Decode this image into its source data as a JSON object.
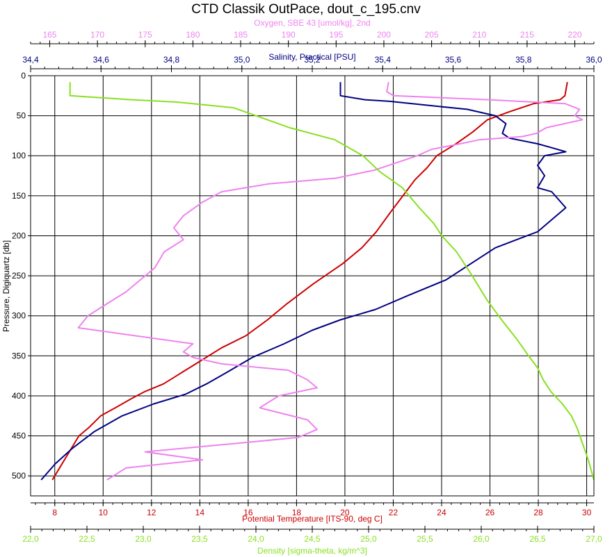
{
  "chart_data": {
    "type": "line",
    "title": "CTD Classik OutPace, dout_c_195.cnv",
    "ylabel": "Pressure, Digiquartz [db]",
    "ylim": [
      0,
      525
    ],
    "y_inverted": true,
    "yticks": [
      0,
      50,
      100,
      150,
      200,
      250,
      300,
      350,
      400,
      450,
      500
    ],
    "grid": true,
    "axes": [
      {
        "id": "oxygen",
        "position": "top-outer",
        "label": "Oxygen, SBE 43 [umol/kg], 2nd",
        "color": "#ee82ee",
        "range": [
          163,
          222
        ],
        "ticks": [
          165,
          170,
          175,
          180,
          185,
          190,
          195,
          200,
          205,
          210,
          215,
          220
        ],
        "ticklabels": [
          "165",
          "170",
          "175",
          "180",
          "185",
          "190",
          "195",
          "200",
          "205",
          "210",
          "215",
          "220"
        ]
      },
      {
        "id": "salinity",
        "position": "top-inner",
        "label": "Salinity, Practical [PSU]",
        "color": "#000080",
        "range": [
          34.4,
          36.0
        ],
        "ticks": [
          34.4,
          34.6,
          34.8,
          35.0,
          35.2,
          35.4,
          35.6,
          35.8,
          36.0
        ],
        "ticklabels": [
          "34,4",
          "34,6",
          "34,8",
          "35,0",
          "35,2",
          "35,4",
          "35,6",
          "35,8",
          "36,0"
        ]
      },
      {
        "id": "temperature",
        "position": "bottom-inner",
        "label": "Potential Temperature [ITS-90, deg C]",
        "color": "#cc0000",
        "range": [
          7,
          30.3
        ],
        "ticks": [
          8,
          10,
          12,
          14,
          16,
          18,
          20,
          22,
          24,
          26,
          28,
          30
        ],
        "ticklabels": [
          "8",
          "10",
          "12",
          "14",
          "16",
          "18",
          "20",
          "22",
          "24",
          "26",
          "28",
          "30"
        ]
      },
      {
        "id": "density",
        "position": "bottom-outer",
        "label": "Density [sigma-theta, kg/m^3]",
        "color": "#88e020",
        "range": [
          22.0,
          27.0
        ],
        "ticks": [
          22.0,
          22.5,
          23.0,
          23.5,
          24.0,
          24.5,
          25.0,
          25.5,
          26.0,
          26.5,
          27.0
        ],
        "ticklabels": [
          "22,0",
          "22,5",
          "23,0",
          "23,5",
          "24,0",
          "24,5",
          "25,0",
          "25,5",
          "26,0",
          "26,5",
          "27,0"
        ]
      }
    ],
    "series": [
      {
        "axis": "temperature",
        "color": "#cc0000",
        "points": [
          [
            29.2,
            8
          ],
          [
            29.1,
            25
          ],
          [
            28.9,
            30
          ],
          [
            27.8,
            35
          ],
          [
            26.8,
            45
          ],
          [
            25.9,
            55
          ],
          [
            25.3,
            70
          ],
          [
            24.6,
            85
          ],
          [
            23.8,
            100
          ],
          [
            23.4,
            115
          ],
          [
            22.9,
            130
          ],
          [
            22.4,
            150
          ],
          [
            21.9,
            170
          ],
          [
            21.3,
            195
          ],
          [
            20.7,
            215
          ],
          [
            19.9,
            235
          ],
          [
            18.7,
            260
          ],
          [
            17.6,
            285
          ],
          [
            16.8,
            305
          ],
          [
            15.9,
            325
          ],
          [
            14.9,
            340
          ],
          [
            14.1,
            355
          ],
          [
            13.3,
            370
          ],
          [
            12.5,
            385
          ],
          [
            11.7,
            395
          ],
          [
            11.2,
            403
          ],
          [
            10.5,
            415
          ],
          [
            9.9,
            425
          ],
          [
            9.4,
            440
          ],
          [
            9.0,
            450
          ],
          [
            8.6,
            470
          ],
          [
            8.2,
            490
          ],
          [
            7.9,
            505
          ]
        ]
      },
      {
        "axis": "salinity",
        "color": "#000080",
        "points": [
          [
            35.28,
            8
          ],
          [
            35.28,
            25
          ],
          [
            35.35,
            30
          ],
          [
            35.42,
            32
          ],
          [
            35.55,
            38
          ],
          [
            35.64,
            42
          ],
          [
            35.72,
            50
          ],
          [
            35.75,
            60
          ],
          [
            35.74,
            72
          ],
          [
            35.76,
            78
          ],
          [
            35.84,
            85
          ],
          [
            35.88,
            90
          ],
          [
            35.92,
            95
          ],
          [
            35.86,
            100
          ],
          [
            35.84,
            112
          ],
          [
            35.86,
            125
          ],
          [
            35.84,
            140
          ],
          [
            35.88,
            145
          ],
          [
            35.9,
            155
          ],
          [
            35.92,
            165
          ],
          [
            35.88,
            180
          ],
          [
            35.84,
            195
          ],
          [
            35.78,
            205
          ],
          [
            35.72,
            215
          ],
          [
            35.65,
            235
          ],
          [
            35.58,
            255
          ],
          [
            35.47,
            275
          ],
          [
            35.38,
            292
          ],
          [
            35.28,
            305
          ],
          [
            35.2,
            318
          ],
          [
            35.12,
            335
          ],
          [
            35.03,
            352
          ],
          [
            34.96,
            370
          ],
          [
            34.9,
            385
          ],
          [
            34.84,
            398
          ],
          [
            34.75,
            410
          ],
          [
            34.66,
            425
          ],
          [
            34.58,
            445
          ],
          [
            34.52,
            465
          ],
          [
            34.47,
            485
          ],
          [
            34.43,
            505
          ]
        ]
      },
      {
        "axis": "oxygen",
        "color": "#ee82ee",
        "points": [
          [
            200.5,
            8
          ],
          [
            200.3,
            20
          ],
          [
            201,
            25
          ],
          [
            211,
            30
          ],
          [
            219,
            35
          ],
          [
            220.5,
            42
          ],
          [
            220,
            50
          ],
          [
            220.8,
            55
          ],
          [
            217,
            65
          ],
          [
            216,
            72
          ],
          [
            214.5,
            76
          ],
          [
            210,
            80
          ],
          [
            208,
            85
          ],
          [
            205,
            92
          ],
          [
            203.5,
            100
          ],
          [
            201,
            110
          ],
          [
            199,
            118
          ],
          [
            195,
            128
          ],
          [
            188,
            135
          ],
          [
            183,
            145
          ],
          [
            181,
            158
          ],
          [
            179,
            175
          ],
          [
            178,
            190
          ],
          [
            179,
            205
          ],
          [
            177,
            220
          ],
          [
            176,
            240
          ],
          [
            174.5,
            255
          ],
          [
            173,
            270
          ],
          [
            171,
            285
          ],
          [
            169,
            300
          ],
          [
            168,
            315
          ],
          [
            174,
            325
          ],
          [
            180,
            335
          ],
          [
            179,
            345
          ],
          [
            180,
            352
          ],
          [
            183,
            360
          ],
          [
            190,
            368
          ],
          [
            192,
            380
          ],
          [
            193,
            390
          ],
          [
            189,
            400
          ],
          [
            187,
            415
          ],
          [
            192,
            430
          ],
          [
            193,
            442
          ],
          [
            191,
            452
          ],
          [
            184,
            460
          ],
          [
            175,
            470
          ],
          [
            181,
            480
          ],
          [
            173,
            490
          ],
          [
            171,
            505
          ]
        ]
      },
      {
        "axis": "density",
        "color": "#88e020",
        "points": [
          [
            22.35,
            8
          ],
          [
            22.35,
            25
          ],
          [
            22.9,
            30
          ],
          [
            23.3,
            33
          ],
          [
            23.8,
            40
          ],
          [
            24.0,
            50
          ],
          [
            24.3,
            65
          ],
          [
            24.7,
            80
          ],
          [
            24.95,
            100
          ],
          [
            25.1,
            120
          ],
          [
            25.3,
            140
          ],
          [
            25.45,
            165
          ],
          [
            25.58,
            185
          ],
          [
            25.65,
            200
          ],
          [
            25.78,
            220
          ],
          [
            25.92,
            250
          ],
          [
            26.05,
            280
          ],
          [
            26.18,
            305
          ],
          [
            26.32,
            330
          ],
          [
            26.42,
            350
          ],
          [
            26.5,
            365
          ],
          [
            26.55,
            380
          ],
          [
            26.62,
            395
          ],
          [
            26.72,
            410
          ],
          [
            26.8,
            425
          ],
          [
            26.85,
            440
          ],
          [
            26.9,
            460
          ],
          [
            26.95,
            480
          ],
          [
            27.0,
            505
          ]
        ]
      }
    ]
  }
}
